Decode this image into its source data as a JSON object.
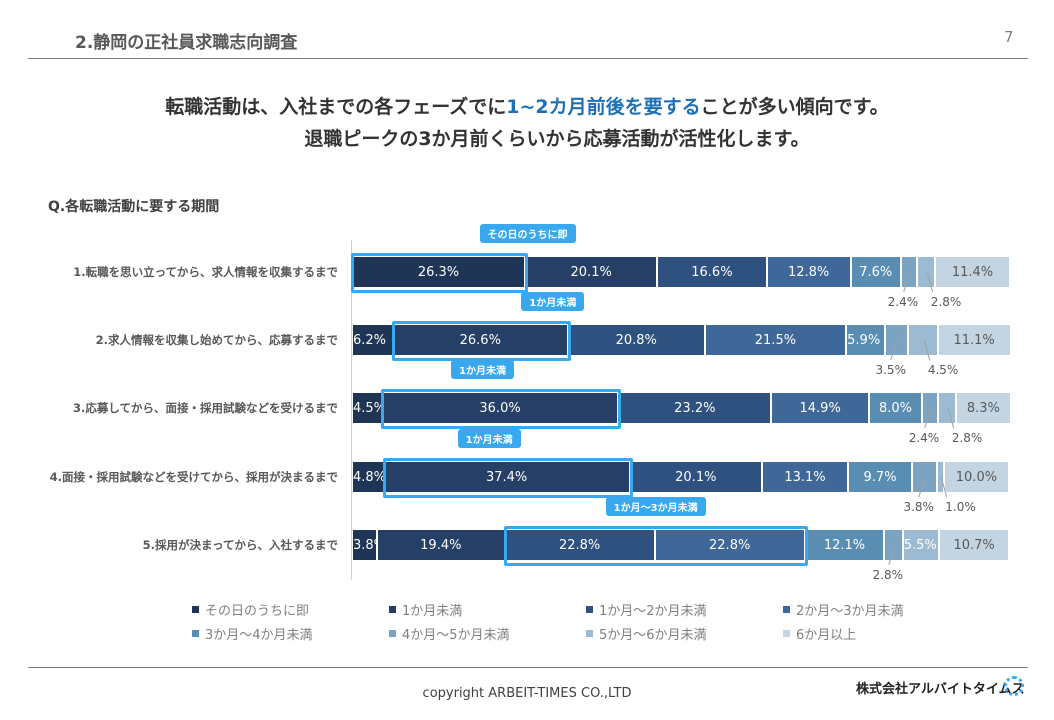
{
  "header": {
    "title": "2.静岡の正社員求職志向調査",
    "page": "7"
  },
  "headline": {
    "line1_a": "転職活動は、入社までの各フェーズでに",
    "line1_hl": "1~2カ月前後を要する",
    "line1_b": "ことが多い傾向です。",
    "line2": "退職ピークの3か月前くらいから応募活動が活性化します。"
  },
  "question": "Q.各転職活動に要する期間",
  "chart_data": {
    "type": "bar",
    "stacked": true,
    "orientation": "horizontal",
    "unit": "%",
    "xlim": [
      0,
      100
    ],
    "categories": [
      "1.転職を思い立ってから、求人情報を収集するまで",
      "2.求人情報を収集し始めてから、応募するまで",
      "3.応募してから、面接・採用試験などを受けるまで",
      "4.面接・採用試験などを受けてから、採用が決まるまで",
      "5.採用が決まってから、入社するまで"
    ],
    "series": [
      {
        "name": "その日のうちに即",
        "color": "#1f3556",
        "values": [
          26.3,
          6.2,
          4.5,
          4.8,
          3.8
        ]
      },
      {
        "name": "1か月未満",
        "color": "#253f67",
        "values": [
          20.1,
          26.6,
          36.0,
          37.4,
          19.4
        ]
      },
      {
        "name": "1か月～2か月未満",
        "color": "#2e517f",
        "values": [
          16.6,
          20.8,
          23.2,
          20.1,
          22.8
        ]
      },
      {
        "name": "2か月～3か月未満",
        "color": "#3f6898",
        "values": [
          12.8,
          21.5,
          14.9,
          13.1,
          22.8
        ]
      },
      {
        "name": "3か月～4か月未満",
        "color": "#5a8db2",
        "values": [
          7.6,
          5.9,
          8.0,
          9.7,
          12.1
        ]
      },
      {
        "name": "4か月～5か月未満",
        "color": "#7ca4c2",
        "values": [
          2.4,
          3.5,
          2.4,
          3.8,
          2.8
        ]
      },
      {
        "name": "5か月～6か月未満",
        "color": "#9cbad1",
        "values": [
          2.8,
          4.5,
          2.8,
          1.0,
          5.5
        ]
      },
      {
        "name": "6か月以上",
        "color": "#c3d4e2",
        "values": [
          11.4,
          11.1,
          8.3,
          10.0,
          10.7
        ]
      }
    ],
    "highlights": [
      {
        "row": 0,
        "from": 0,
        "to": 0,
        "label": "その日のうちに即"
      },
      {
        "row": 1,
        "from": 1,
        "to": 1,
        "label": "1か月未満"
      },
      {
        "row": 2,
        "from": 1,
        "to": 1,
        "label": "1か月未満"
      },
      {
        "row": 3,
        "from": 1,
        "to": 1,
        "label": "1か月未満"
      },
      {
        "row": 4,
        "from": 2,
        "to": 3,
        "label": "1か月～3か月未満"
      }
    ],
    "legend": "bottom"
  },
  "footer": {
    "copyright": "copyright ARBEIT-TIMES CO.,LTD",
    "logo": "株式会社アルバイトタイムス"
  }
}
